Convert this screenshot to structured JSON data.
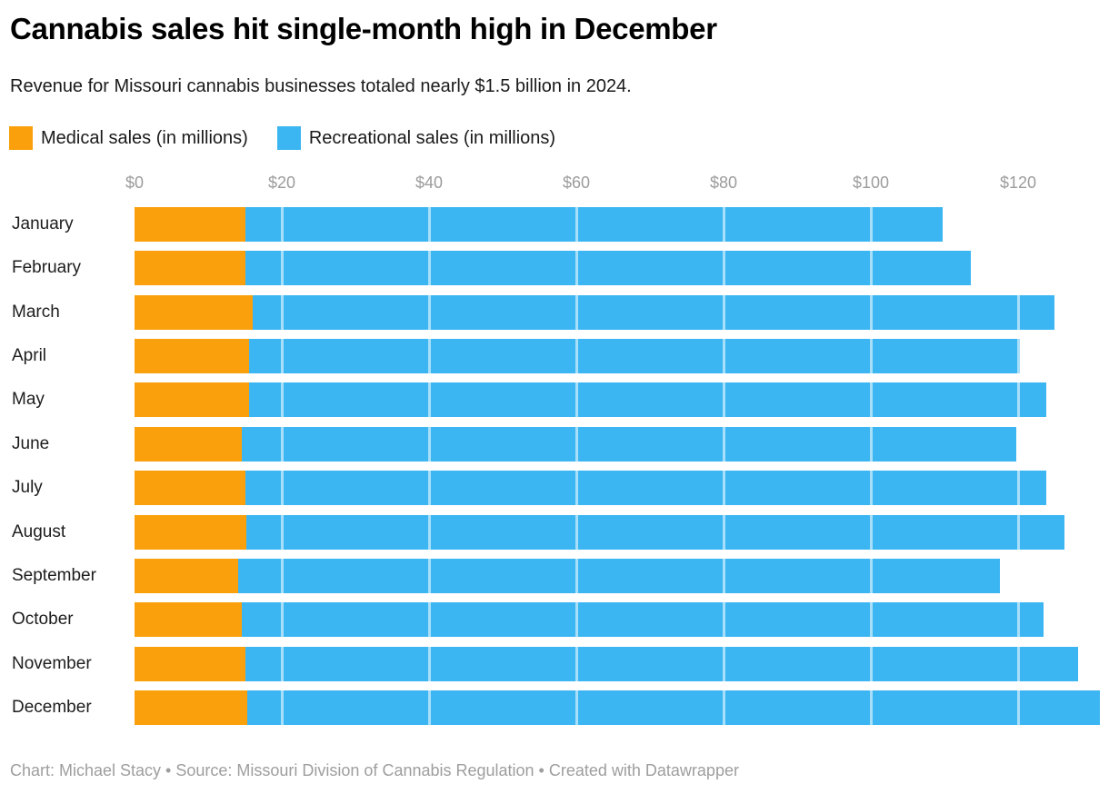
{
  "header": {
    "title": "Cannabis sales hit single-month high in December",
    "subtitle": "Revenue for Missouri cannabis businesses totaled nearly $1.5 billion in 2024."
  },
  "legend": {
    "items": [
      {
        "label": "Medical sales (in millions)",
        "color": "#F9A00C"
      },
      {
        "label": "Recreational sales (in millions)",
        "color": "#3CB6F2"
      }
    ]
  },
  "chart_data": {
    "type": "bar",
    "orientation": "horizontal",
    "stacked": true,
    "title": "Cannabis sales hit single-month high in December",
    "subtitle": "Revenue for Missouri cannabis businesses totaled nearly $1.5 billion in 2024.",
    "categories": [
      "January",
      "February",
      "March",
      "April",
      "May",
      "June",
      "July",
      "August",
      "September",
      "October",
      "November",
      "December"
    ],
    "series": [
      {
        "name": "Medical sales (in millions)",
        "color": "#F9A00C",
        "values": [
          15.1,
          15.1,
          16.0,
          15.5,
          15.5,
          14.6,
          15.1,
          15.2,
          14.1,
          14.6,
          15.0,
          15.3
        ]
      },
      {
        "name": "Recreational sales (in millions)",
        "color": "#3CB6F2",
        "values": [
          94.7,
          98.5,
          109.0,
          104.8,
          108.3,
          105.2,
          108.7,
          111.1,
          103.4,
          108.8,
          113.1,
          115.8
        ]
      }
    ],
    "totals": [
      109.8,
      113.6,
      125.0,
      120.3,
      123.8,
      119.8,
      123.8,
      126.3,
      117.5,
      123.4,
      128.1,
      131.1
    ],
    "axis": {
      "ticks": [
        0,
        20,
        40,
        60,
        80,
        100,
        120
      ],
      "tick_labels": [
        "$0",
        "$20",
        "$40",
        "$60",
        "$80",
        "$100",
        "$120"
      ],
      "max": 131.2,
      "unit": "millions USD"
    },
    "grid": "vertical",
    "legend_position": "top-left"
  },
  "footer": {
    "text": "Chart: Michael Stacy • Source: Missouri Division of Cannabis Regulation • Created with Datawrapper"
  }
}
